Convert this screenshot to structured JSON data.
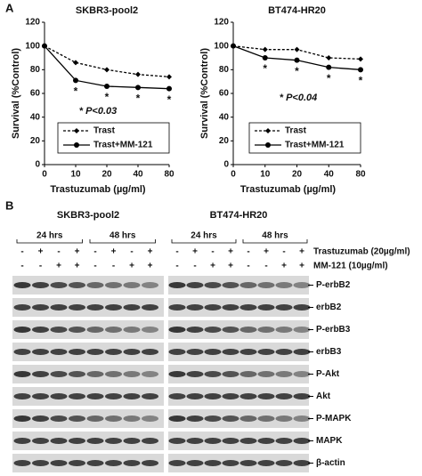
{
  "chart_data": [
    {
      "type": "line",
      "title": "SKBR3-pool2",
      "x_label": "Trastuzumab (µg/ml)",
      "y_label": "Survival (%Control)",
      "categories": [
        "0",
        "10",
        "20",
        "40",
        "80"
      ],
      "ylim": [
        0,
        120
      ],
      "yticks": [
        0,
        20,
        40,
        60,
        80,
        100,
        120
      ],
      "series": [
        {
          "name": "Trast",
          "color": "#000000",
          "line_style": "dashed",
          "marker": "diamond",
          "values": [
            100,
            86,
            80,
            76,
            74
          ]
        },
        {
          "name": "Trast+MM-121",
          "color": "#000000",
          "line_style": "solid",
          "marker": "circle",
          "values": [
            100,
            71,
            66,
            65,
            64
          ]
        }
      ],
      "significance_marks": [
        null,
        "*",
        "*",
        "*",
        "*"
      ],
      "annotation": "* P<0.03"
    },
    {
      "type": "line",
      "title": "BT474-HR20",
      "x_label": "Trastuzumab (µg/ml)",
      "y_label": "Survival (%Control)",
      "categories": [
        "0",
        "10",
        "20",
        "40",
        "80"
      ],
      "ylim": [
        0,
        120
      ],
      "yticks": [
        0,
        20,
        40,
        60,
        80,
        100,
        120
      ],
      "series": [
        {
          "name": "Trast",
          "color": "#000000",
          "line_style": "dashed",
          "marker": "diamond",
          "values": [
            100,
            97,
            97,
            90,
            89
          ]
        },
        {
          "name": "Trast+MM-121",
          "color": "#000000",
          "line_style": "solid",
          "marker": "circle",
          "values": [
            100,
            90,
            88,
            82,
            80
          ]
        }
      ],
      "significance_marks": [
        null,
        "*",
        "*",
        "*",
        "*"
      ],
      "annotation": "* P<0.04"
    }
  ],
  "panel_labels": [
    "A",
    "B"
  ],
  "blot": {
    "cell_lines": [
      "SKBR3-pool2",
      "BT474-HR20"
    ],
    "time_points": [
      "24 hrs",
      "48 hrs",
      "24 hrs",
      "48 hrs"
    ],
    "treatments": [
      {
        "label": "Trastuzumab (20µg/ml)",
        "signs": [
          "-",
          "+",
          "-",
          "+",
          "-",
          "+",
          "-",
          "+",
          "-",
          "+",
          "-",
          "+",
          "-",
          "+",
          "-",
          "+"
        ]
      },
      {
        "label": "MM-121 (10µg/ml)",
        "signs": [
          "-",
          "-",
          "+",
          "+",
          "-",
          "-",
          "+",
          "+",
          "-",
          "-",
          "+",
          "+",
          "-",
          "-",
          "+",
          "+"
        ]
      }
    ],
    "rows": [
      "P-erbB2",
      "erbB2",
      "P-erbB3",
      "erbB3",
      "P-Akt",
      "Akt",
      "P-MAPK",
      "MAPK",
      "β-actin"
    ]
  }
}
